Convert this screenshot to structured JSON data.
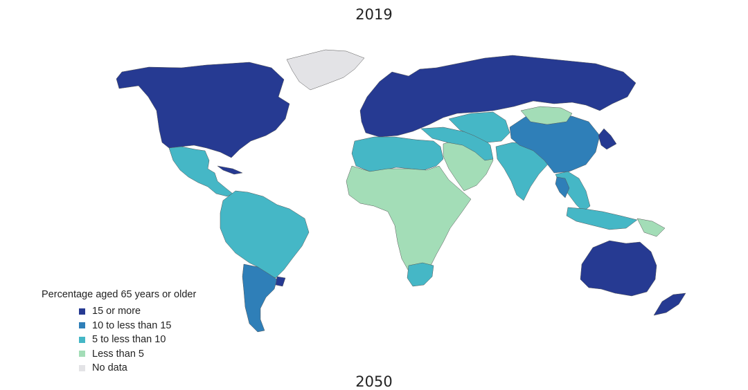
{
  "title_top": "2019",
  "title_bottom": "2050",
  "legend": {
    "title": "Percentage aged 65 years or older",
    "items": [
      {
        "label": "15 or more",
        "color": "#263a92"
      },
      {
        "label": "10 to less than 15",
        "color": "#2f7fb8"
      },
      {
        "label": "5 to less than 10",
        "color": "#45b7c6"
      },
      {
        "label": "Less than 5",
        "color": "#a3ddb7"
      },
      {
        "label": "No data",
        "color": "#e3e3e6"
      }
    ]
  },
  "regions": [
    {
      "name": "North America",
      "category": 0
    },
    {
      "name": "Greenland",
      "category": 4
    },
    {
      "name": "Mexico and Central America",
      "category": 2
    },
    {
      "name": "Cuba",
      "category": 0
    },
    {
      "name": "Northern South America",
      "category": 2
    },
    {
      "name": "Southern Cone",
      "category": 1
    },
    {
      "name": "Uruguay",
      "category": 0
    },
    {
      "name": "Europe and Russia",
      "category": 0
    },
    {
      "name": "North Africa",
      "category": 2
    },
    {
      "name": "Sub-Saharan Africa",
      "category": 3
    },
    {
      "name": "South Africa",
      "category": 2
    },
    {
      "name": "Middle East",
      "category": 3
    },
    {
      "name": "Iran and Turkey",
      "category": 2
    },
    {
      "name": "Central Asia",
      "category": 2
    },
    {
      "name": "South Asia",
      "category": 2
    },
    {
      "name": "China",
      "category": 1
    },
    {
      "name": "Mongolia",
      "category": 3
    },
    {
      "name": "Japan and Korea",
      "category": 0
    },
    {
      "name": "Southeast Asia",
      "category": 2
    },
    {
      "name": "Thailand",
      "category": 1
    },
    {
      "name": "Indonesia",
      "category": 2
    },
    {
      "name": "Papua New Guinea",
      "category": 3
    },
    {
      "name": "Australia",
      "category": 0
    },
    {
      "name": "New Zealand",
      "category": 0
    }
  ]
}
